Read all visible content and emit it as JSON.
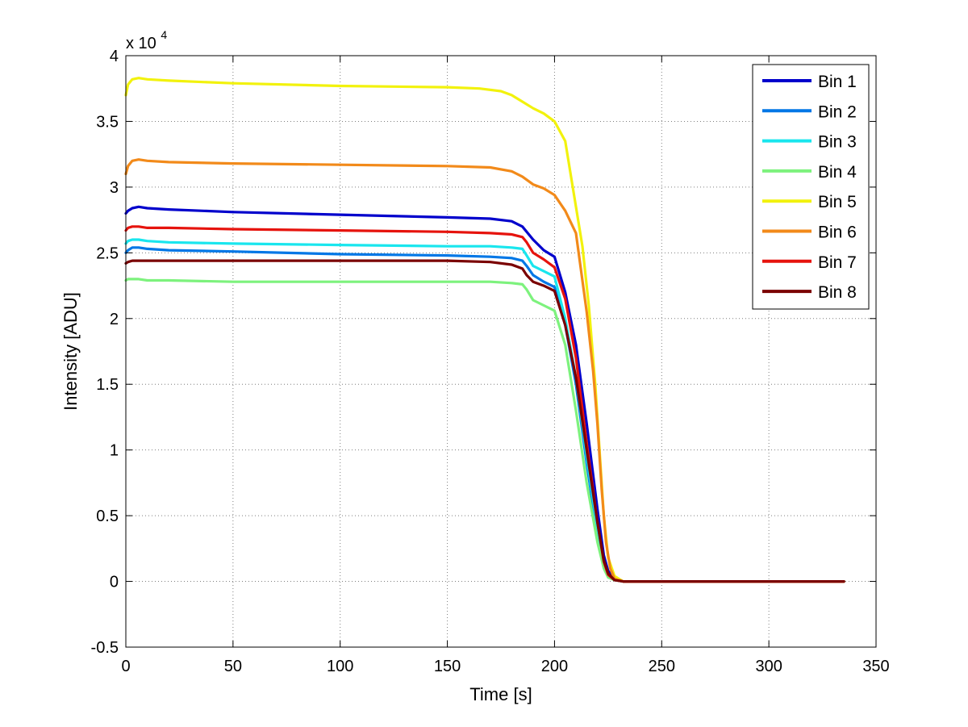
{
  "chart_data": {
    "type": "line",
    "xlabel": "Time [s]",
    "ylabel": "Intensity [ADU]",
    "y_multiplier": "x 10",
    "y_multiplier_exp": "4",
    "xlim": [
      0,
      350
    ],
    "ylim": [
      -0.5,
      4
    ],
    "xticks": [
      0,
      50,
      100,
      150,
      200,
      250,
      300,
      350
    ],
    "yticks": [
      -0.5,
      0,
      0.5,
      1,
      1.5,
      2,
      2.5,
      3,
      3.5,
      4
    ],
    "xtick_labels": [
      "0",
      "50",
      "100",
      "150",
      "200",
      "250",
      "300",
      "350"
    ],
    "ytick_labels": [
      "-0.5",
      "0",
      "0.5",
      "1",
      "1.5",
      "2",
      "2.5",
      "3",
      "3.5",
      "4"
    ],
    "grid": true,
    "legend_position": "top-right",
    "series": [
      {
        "name": "Bin 1",
        "color": "#0000cc",
        "x": [
          0,
          1,
          3,
          6,
          10,
          20,
          50,
          100,
          150,
          170,
          180,
          185,
          190,
          195,
          200,
          205,
          210,
          215,
          220,
          223,
          225,
          228,
          232,
          240,
          260,
          300,
          335
        ],
        "y": [
          2.8,
          2.82,
          2.84,
          2.85,
          2.84,
          2.83,
          2.81,
          2.79,
          2.77,
          2.76,
          2.74,
          2.7,
          2.6,
          2.52,
          2.47,
          2.2,
          1.8,
          1.2,
          0.55,
          0.2,
          0.08,
          0.02,
          0,
          0,
          0,
          0,
          0
        ]
      },
      {
        "name": "Bin 2",
        "color": "#0077e6",
        "x": [
          0,
          1,
          3,
          6,
          10,
          20,
          50,
          100,
          150,
          170,
          180,
          185,
          187,
          190,
          195,
          200,
          205,
          210,
          215,
          220,
          223,
          225,
          228,
          232,
          240,
          260,
          300,
          335
        ],
        "y": [
          2.5,
          2.52,
          2.54,
          2.54,
          2.53,
          2.52,
          2.51,
          2.49,
          2.48,
          2.47,
          2.46,
          2.44,
          2.4,
          2.33,
          2.28,
          2.24,
          1.95,
          1.5,
          0.9,
          0.35,
          0.12,
          0.05,
          0.01,
          0,
          0,
          0,
          0,
          0
        ]
      },
      {
        "name": "Bin 3",
        "color": "#19e6ee",
        "x": [
          0,
          1,
          3,
          6,
          10,
          20,
          50,
          100,
          150,
          170,
          180,
          185,
          187,
          190,
          195,
          200,
          205,
          210,
          215,
          220,
          223,
          225,
          228,
          232,
          240,
          260,
          300,
          335
        ],
        "y": [
          2.57,
          2.59,
          2.6,
          2.6,
          2.59,
          2.58,
          2.57,
          2.56,
          2.55,
          2.55,
          2.54,
          2.53,
          2.48,
          2.4,
          2.36,
          2.32,
          2.0,
          1.55,
          0.95,
          0.4,
          0.15,
          0.05,
          0.01,
          0,
          0,
          0,
          0,
          0
        ]
      },
      {
        "name": "Bin 4",
        "color": "#7df27d",
        "x": [
          0,
          1,
          3,
          6,
          10,
          20,
          50,
          100,
          150,
          170,
          180,
          185,
          187,
          190,
          195,
          200,
          205,
          210,
          215,
          220,
          223,
          225,
          228,
          232,
          240,
          260,
          300,
          335
        ],
        "y": [
          2.29,
          2.3,
          2.3,
          2.3,
          2.29,
          2.29,
          2.28,
          2.28,
          2.28,
          2.28,
          2.27,
          2.26,
          2.22,
          2.14,
          2.1,
          2.06,
          1.8,
          1.3,
          0.75,
          0.3,
          0.1,
          0.03,
          0.01,
          0,
          0,
          0,
          0,
          0
        ]
      },
      {
        "name": "Bin 5",
        "color": "#f2f20d",
        "x": [
          0,
          1,
          3,
          6,
          10,
          20,
          50,
          100,
          150,
          165,
          175,
          180,
          185,
          190,
          195,
          200,
          205,
          210,
          213,
          216,
          219,
          221,
          223,
          225,
          228,
          232,
          240,
          260,
          300,
          335
        ],
        "y": [
          3.7,
          3.78,
          3.82,
          3.83,
          3.82,
          3.81,
          3.79,
          3.77,
          3.76,
          3.75,
          3.73,
          3.7,
          3.65,
          3.6,
          3.56,
          3.5,
          3.35,
          2.85,
          2.55,
          2.1,
          1.5,
          1.0,
          0.5,
          0.18,
          0.04,
          0,
          0,
          0,
          0,
          0
        ]
      },
      {
        "name": "Bin 6",
        "color": "#f28a1a",
        "x": [
          0,
          1,
          3,
          6,
          10,
          20,
          50,
          100,
          150,
          170,
          180,
          185,
          190,
          195,
          200,
          205,
          210,
          215,
          218,
          220,
          222,
          224,
          226,
          228,
          232,
          240,
          260,
          300,
          335
        ],
        "y": [
          3.1,
          3.16,
          3.2,
          3.21,
          3.2,
          3.19,
          3.18,
          3.17,
          3.16,
          3.15,
          3.12,
          3.08,
          3.02,
          2.99,
          2.94,
          2.82,
          2.65,
          2.05,
          1.6,
          1.2,
          0.7,
          0.3,
          0.1,
          0.02,
          0,
          0,
          0,
          0,
          0
        ]
      },
      {
        "name": "Bin 7",
        "color": "#e6130d",
        "x": [
          0,
          1,
          3,
          6,
          10,
          20,
          50,
          100,
          150,
          170,
          180,
          185,
          187,
          190,
          195,
          200,
          205,
          210,
          215,
          220,
          223,
          225,
          228,
          232,
          240,
          260,
          300,
          335
        ],
        "y": [
          2.67,
          2.69,
          2.7,
          2.7,
          2.69,
          2.69,
          2.68,
          2.67,
          2.66,
          2.65,
          2.64,
          2.62,
          2.58,
          2.5,
          2.45,
          2.39,
          2.15,
          1.7,
          1.05,
          0.45,
          0.15,
          0.05,
          0.01,
          0,
          0,
          0,
          0,
          0
        ]
      },
      {
        "name": "Bin 8",
        "color": "#7a0000",
        "x": [
          0,
          1,
          3,
          6,
          10,
          20,
          50,
          100,
          150,
          170,
          180,
          185,
          187,
          190,
          195,
          200,
          205,
          210,
          215,
          220,
          223,
          225,
          228,
          232,
          240,
          260,
          300,
          335
        ],
        "y": [
          2.42,
          2.43,
          2.44,
          2.44,
          2.44,
          2.44,
          2.44,
          2.44,
          2.44,
          2.43,
          2.41,
          2.38,
          2.33,
          2.28,
          2.25,
          2.21,
          1.95,
          1.55,
          1.0,
          0.45,
          0.16,
          0.06,
          0.01,
          0,
          0,
          0,
          0,
          0
        ]
      }
    ]
  }
}
